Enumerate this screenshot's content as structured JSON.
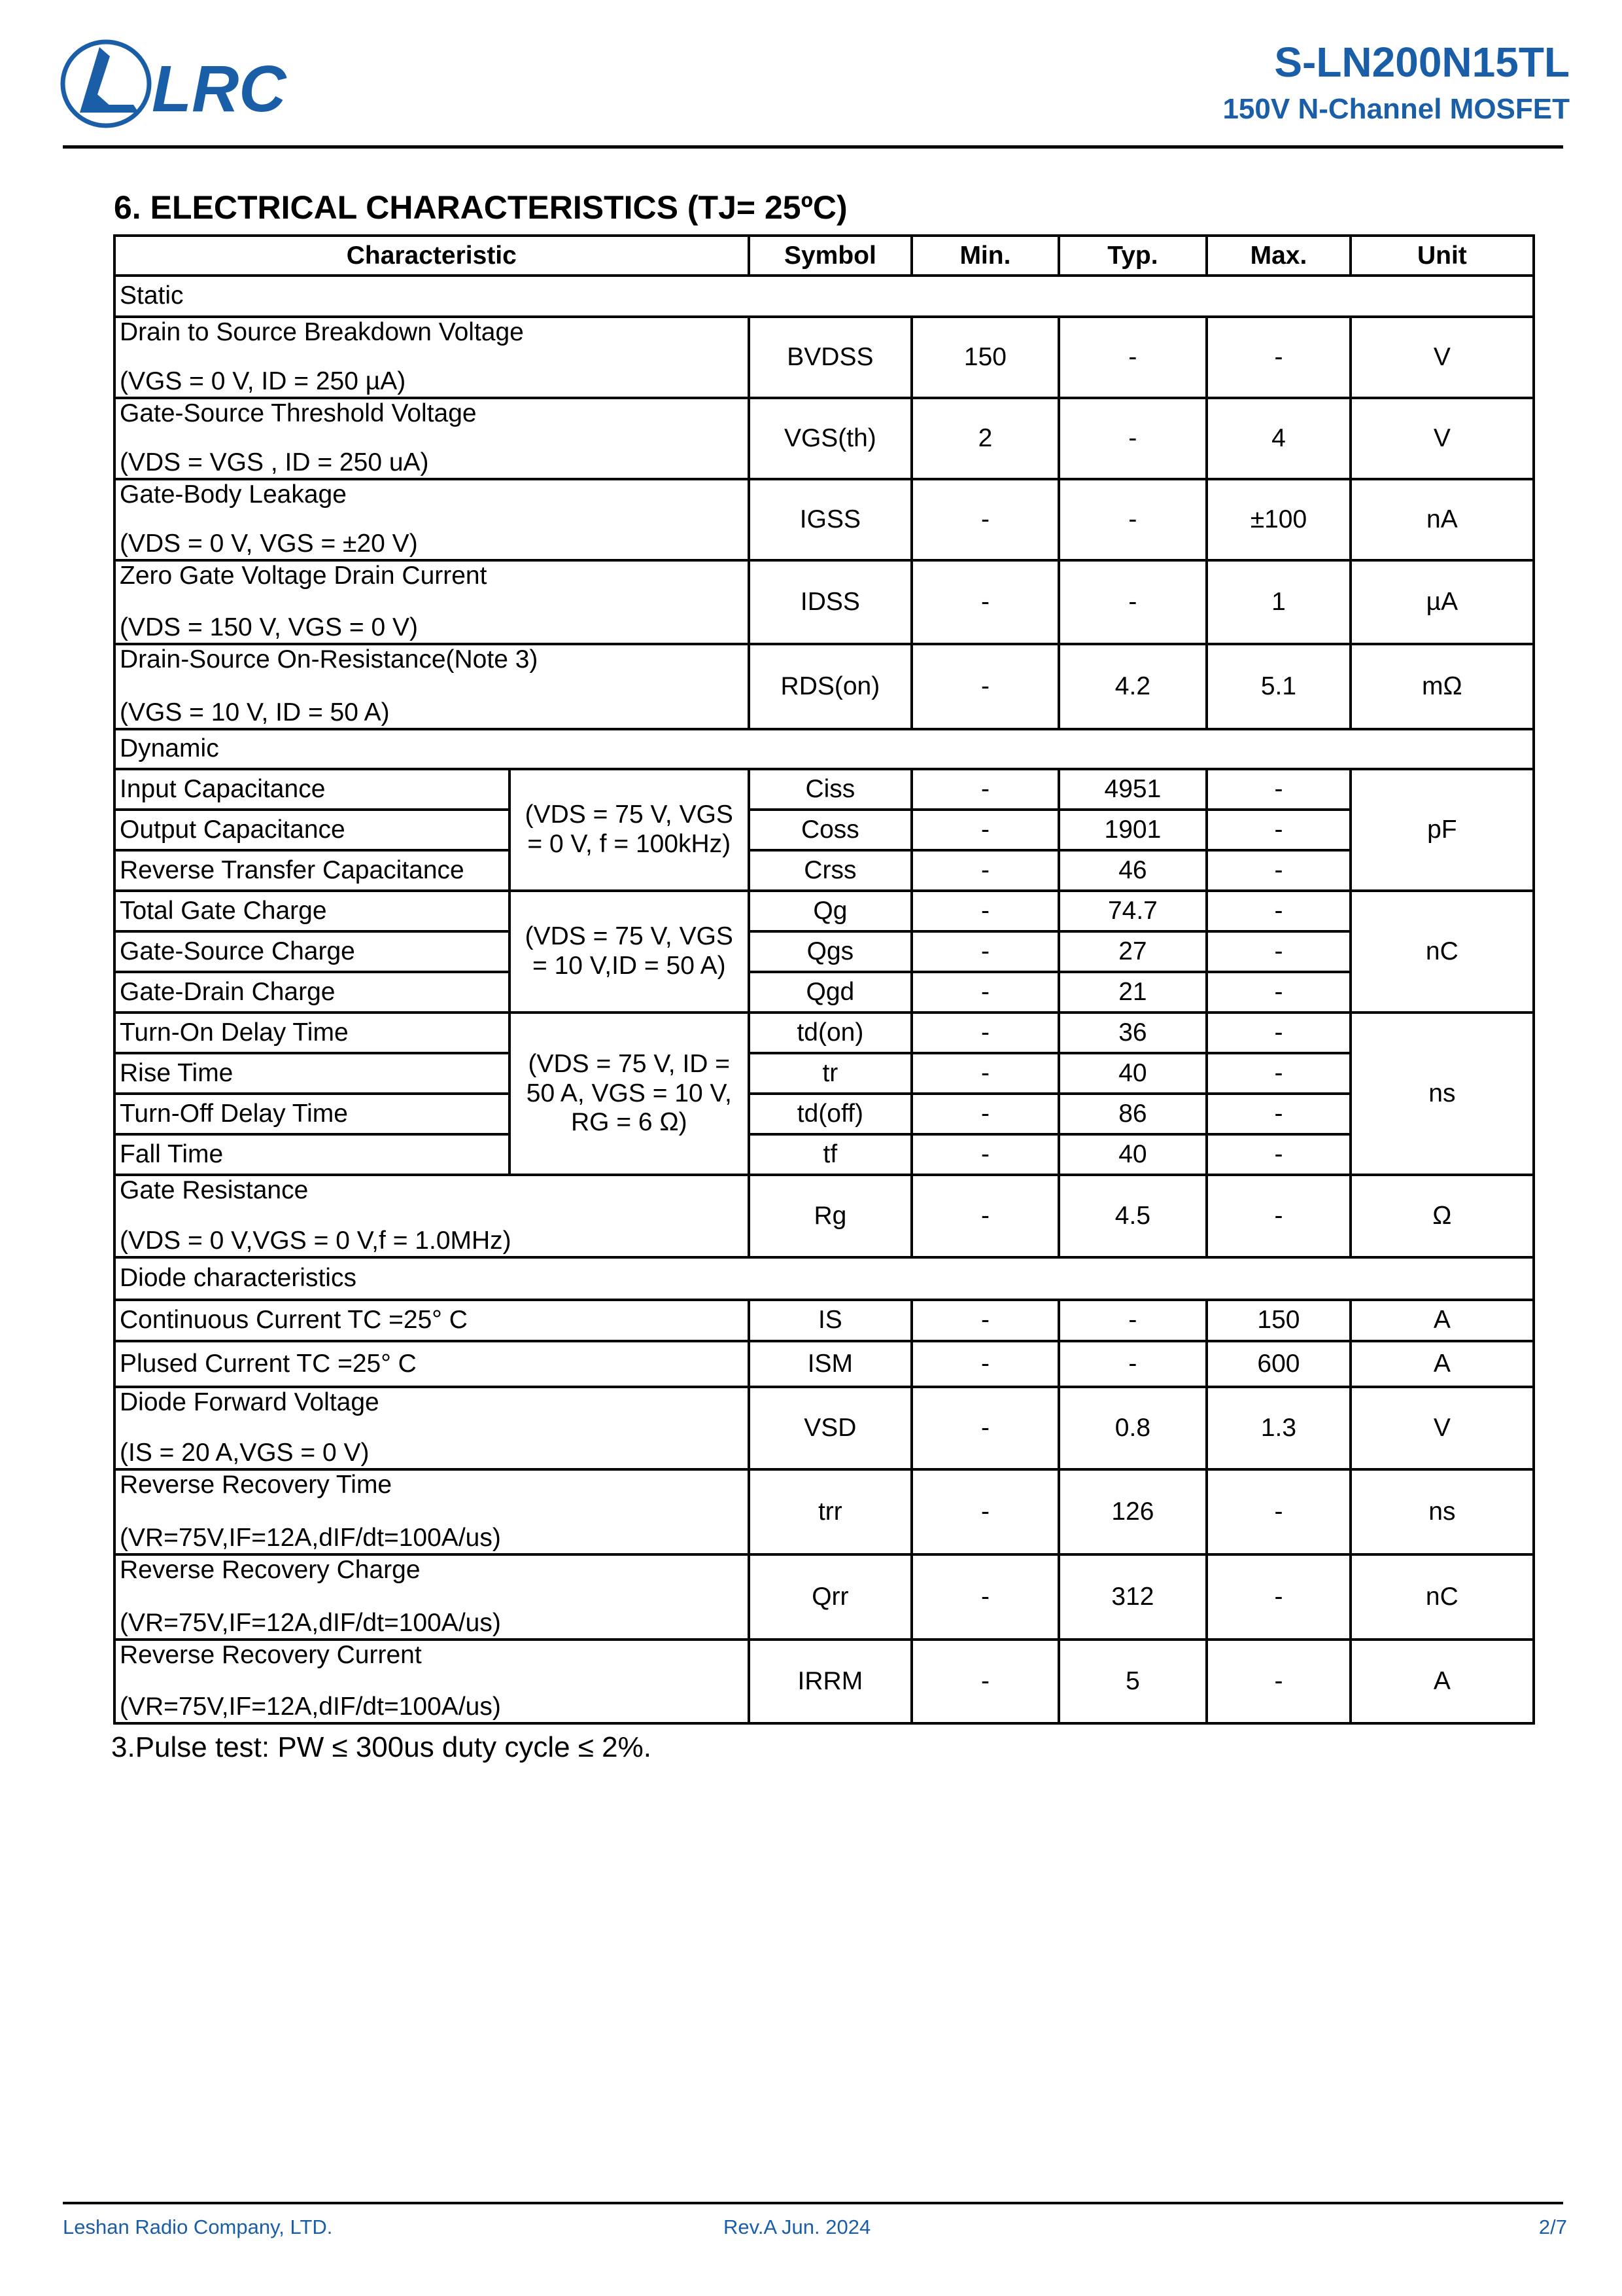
{
  "header": {
    "logo_text": "LRC",
    "part_number": "S-LN200N15TL",
    "subtitle": "150V N-Channel MOSFET"
  },
  "section_title": "6. ELECTRICAL CHARACTERISTICS (TJ= 25ºC)",
  "table": {
    "headers": [
      "Characteristic",
      "Symbol",
      "Min.",
      "Typ.",
      "Max.",
      "Unit"
    ],
    "rows": [
      {
        "section": "Static"
      },
      {
        "name": "Drain to Source Breakdown Voltage",
        "cond": "(VGS = 0 V, ID = 250 µA)",
        "symbol": "BVDSS",
        "min": "150",
        "typ": "-",
        "max": "-",
        "unit": "V"
      },
      {
        "name": "Gate-Source Threshold Voltage",
        "cond": "(VDS = VGS , ID = 250 uA)",
        "symbol": "VGS(th)",
        "min": "2",
        "typ": "-",
        "max": "4",
        "unit": "V"
      },
      {
        "name": "Gate-Body Leakage",
        "cond": "(VDS = 0 V, VGS = ±20 V)",
        "symbol": "IGSS",
        "min": "-",
        "typ": "-",
        "max": "±100",
        "unit": "nA"
      },
      {
        "name": "Zero Gate Voltage Drain Current",
        "cond": "(VDS = 150 V, VGS = 0 V)",
        "symbol": "IDSS",
        "min": "-",
        "typ": "-",
        "max": "1",
        "unit": "µA"
      },
      {
        "name": "Drain-Source On-Resistance(Note 3)",
        "cond": "(VGS = 10 V, ID = 50 A)",
        "symbol": "RDS(on)",
        "min": "-",
        "typ": "4.2",
        "max": "5.1",
        "unit": "mΩ"
      },
      {
        "section": "Dynamic"
      },
      {
        "name": "Input Capacitance",
        "group_cond": "(VDS = 75 V, VGS = 0 V, f = 100kHz)",
        "group_unit": "pF",
        "span": 3,
        "symbol": "Ciss",
        "min": "-",
        "typ": "4951",
        "max": "-"
      },
      {
        "name": "Output Capacitance",
        "symbol": "Coss",
        "min": "-",
        "typ": "1901",
        "max": "-"
      },
      {
        "name": "Reverse Transfer Capacitance",
        "symbol": "Crss",
        "min": "-",
        "typ": "46",
        "max": "-"
      },
      {
        "name": "Total Gate Charge",
        "group_cond": "(VDS = 75 V, VGS = 10 V,ID = 50 A)",
        "group_unit": "nC",
        "span": 3,
        "symbol": "Qg",
        "min": "-",
        "typ": "74.7",
        "max": "-"
      },
      {
        "name": "Gate-Source Charge",
        "symbol": "Qgs",
        "min": "-",
        "typ": "27",
        "max": "-"
      },
      {
        "name": "Gate-Drain Charge",
        "symbol": "Qgd",
        "min": "-",
        "typ": "21",
        "max": "-"
      },
      {
        "name": "Turn-On Delay Time",
        "group_cond": "(VDS = 75 V, ID = 50 A, VGS = 10 V, RG = 6 Ω)",
        "group_unit": "ns",
        "span": 4,
        "symbol": "td(on)",
        "min": "-",
        "typ": "36",
        "max": "-"
      },
      {
        "name": "Rise Time",
        "symbol": "tr",
        "min": "-",
        "typ": "40",
        "max": "-"
      },
      {
        "name": "Turn-Off Delay Time",
        "symbol": "td(off)",
        "min": "-",
        "typ": "86",
        "max": "-"
      },
      {
        "name": "Fall Time",
        "symbol": "tf",
        "min": "-",
        "typ": "40",
        "max": "-"
      },
      {
        "name": "Gate Resistance",
        "cond": "(VDS = 0 V,VGS = 0 V,f = 1.0MHz)",
        "symbol": "Rg",
        "min": "-",
        "typ": "4.5",
        "max": "-",
        "unit": "Ω"
      },
      {
        "section": "Diode characteristics"
      },
      {
        "name": "Continuous Current TC =25° C",
        "symbol": "IS",
        "min": "-",
        "typ": "-",
        "max": "150",
        "unit": "A"
      },
      {
        "name": "Plused Current TC =25° C",
        "symbol": "ISM",
        "min": "-",
        "typ": "-",
        "max": "600",
        "unit": "A"
      },
      {
        "name": "Diode Forward Voltage",
        "cond": "(IS = 20 A,VGS = 0 V)",
        "symbol": "VSD",
        "min": "-",
        "typ": "0.8",
        "max": "1.3",
        "unit": "V"
      },
      {
        "name": "Reverse Recovery Time",
        "cond": "(VR=75V,IF=12A,dIF/dt=100A/us)",
        "symbol": "trr",
        "min": "-",
        "typ": "126",
        "max": "-",
        "unit": "ns"
      },
      {
        "name": "Reverse Recovery Charge",
        "cond": "(VR=75V,IF=12A,dIF/dt=100A/us)",
        "symbol": "Qrr",
        "min": "-",
        "typ": "312",
        "max": "-",
        "unit": "nC"
      },
      {
        "name": "Reverse Recovery Current",
        "cond": "(VR=75V,IF=12A,dIF/dt=100A/us)",
        "symbol": "IRRM",
        "min": "-",
        "typ": "5",
        "max": "-",
        "unit": "A"
      }
    ]
  },
  "note": "3.Pulse test: PW ≤ 300us duty cycle ≤ 2%.",
  "footer": {
    "company": "Leshan Radio Company, LTD.",
    "revision": "Rev.A   Jun.  2024",
    "page": "2/7"
  }
}
